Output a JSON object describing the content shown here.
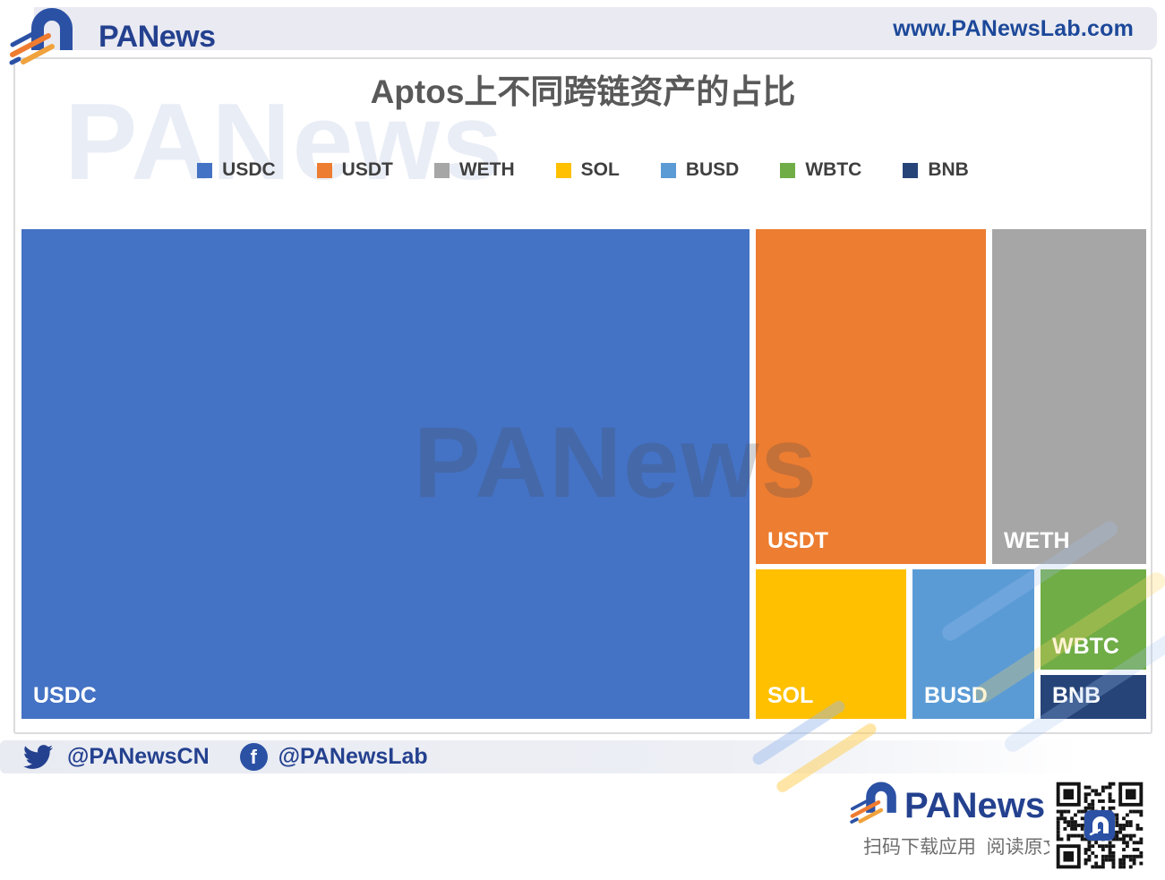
{
  "header": {
    "brand": "PANews",
    "website": "www.PANewsLab.com"
  },
  "chart": {
    "title": "Aptos上不同跨链资产的占比",
    "watermark": "PANews"
  },
  "chart_data": {
    "type": "treemap",
    "title": "Aptos上不同跨链资产的占比",
    "legend_position": "top",
    "value_labels_shown": false,
    "items": [
      {
        "label": "USDC",
        "color": "#4472C4",
        "share_pct_est": 65.8
      },
      {
        "label": "USDT",
        "color": "#ED7D31",
        "share_pct_est": 14.3
      },
      {
        "label": "WETH",
        "color": "#A6A6A6",
        "share_pct_est": 9.5
      },
      {
        "label": "SOL",
        "color": "#FFC000",
        "share_pct_est": 4.2
      },
      {
        "label": "BUSD",
        "color": "#5B9BD5",
        "share_pct_est": 3.3
      },
      {
        "label": "WBTC",
        "color": "#70AD47",
        "share_pct_est": 2.0
      },
      {
        "label": "BNB",
        "color": "#264478",
        "share_pct_est": 0.9
      }
    ]
  },
  "footer": {
    "twitter_handle": "@PANewsCN",
    "facebook_handle": "@PANewsLab"
  },
  "promo": {
    "brand": "PANews",
    "tagline": "扫码下载应用  阅读原文"
  },
  "colors": {
    "brand_blue": "#24418f",
    "brand_orange": "#ee7c30",
    "brand_yellow": "#f0a23c"
  }
}
